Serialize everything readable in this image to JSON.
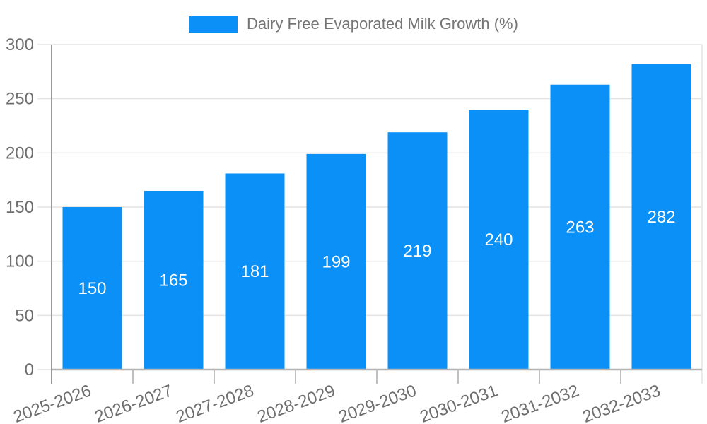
{
  "legend": {
    "label": "Dairy Free Evaporated Milk Growth (%)"
  },
  "colors": {
    "bar": "#0a90f6",
    "grid": "#e4e4e4",
    "y_axis": "#9a9a9a",
    "x_axis": "#b4b4b4",
    "boundary_tick": "#ababab",
    "tick_label": "#6e6e6e",
    "legend_text": "#757575",
    "value_label": "#ffffff"
  },
  "chart_data": {
    "type": "bar",
    "title": "Dairy Free Evaporated Milk Growth (%)",
    "series_name": "Dairy Free Evaporated Milk Growth (%)",
    "categories": [
      "2025-2026",
      "2026-2027",
      "2027-2028",
      "2028-2029",
      "2029-2030",
      "2030-2031",
      "2031-2032",
      "2032-2033"
    ],
    "values": [
      150,
      165,
      181,
      199,
      219,
      240,
      263,
      282
    ],
    "xlabel": "",
    "ylabel": "",
    "ylim": [
      0,
      300
    ],
    "yticks": [
      0,
      50,
      100,
      150,
      200,
      250,
      300
    ],
    "grid": true,
    "legend_position": "top",
    "value_label_position": "inside-center",
    "x_label_rotation_deg": -20
  }
}
